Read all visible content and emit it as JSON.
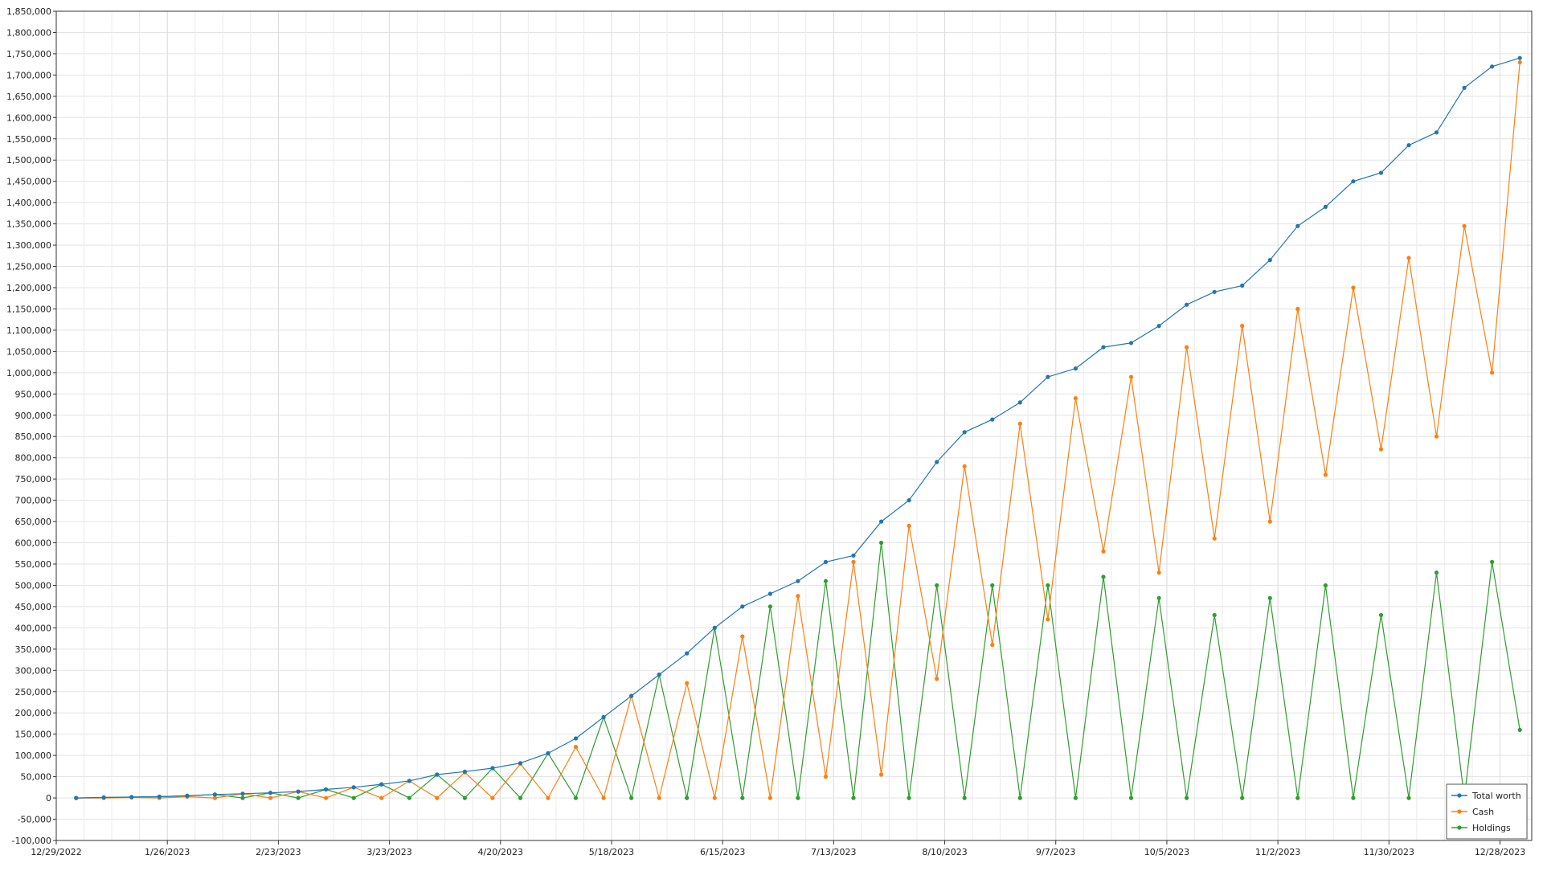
{
  "chart_data": {
    "type": "line",
    "title": "",
    "xlabel": "",
    "ylabel": "",
    "x_range": [
      "2022-12-29",
      "2024-01-05"
    ],
    "ylim": [
      -100000,
      1850000
    ],
    "grid": true,
    "legend_position": "bottom-right",
    "x_tick_labels": [
      "12/29/2022",
      "1/26/2023",
      "2/23/2023",
      "3/23/2023",
      "4/20/2023",
      "5/18/2023",
      "6/15/2023",
      "7/13/2023",
      "8/10/2023",
      "9/7/2023",
      "10/5/2023",
      "11/2/2023",
      "11/30/2023",
      "12/28/2023"
    ],
    "y_tick_labels": [
      "-100,000",
      "-50,000",
      "0",
      "50,000",
      "100,000",
      "150,000",
      "200,000",
      "250,000",
      "300,000",
      "350,000",
      "400,000",
      "450,000",
      "500,000",
      "550,000",
      "600,000",
      "650,000",
      "700,000",
      "750,000",
      "800,000",
      "850,000",
      "900,000",
      "950,000",
      "1,000,000",
      "1,050,000",
      "1,100,000",
      "1,150,000",
      "1,200,000",
      "1,250,000",
      "1,300,000",
      "1,350,000",
      "1,400,000",
      "1,450,000",
      "1,500,000",
      "1,550,000",
      "1,600,000",
      "1,650,000",
      "1,700,000",
      "1,750,000",
      "1,800,000",
      "1,850,000"
    ],
    "series": [
      {
        "name": "Total worth",
        "color": "#1f77b4",
        "points": [
          [
            "2023-01-03",
            0
          ],
          [
            "2023-01-10",
            1000
          ],
          [
            "2023-01-17",
            2000
          ],
          [
            "2023-01-24",
            3000
          ],
          [
            "2023-01-31",
            5000
          ],
          [
            "2023-02-07",
            8000
          ],
          [
            "2023-02-14",
            10000
          ],
          [
            "2023-02-21",
            12000
          ],
          [
            "2023-02-28",
            15000
          ],
          [
            "2023-03-07",
            20000
          ],
          [
            "2023-03-14",
            25000
          ],
          [
            "2023-03-21",
            32000
          ],
          [
            "2023-03-28",
            40000
          ],
          [
            "2023-04-04",
            55000
          ],
          [
            "2023-04-11",
            62000
          ],
          [
            "2023-04-18",
            70000
          ],
          [
            "2023-04-25",
            82000
          ],
          [
            "2023-05-02",
            105000
          ],
          [
            "2023-05-09",
            140000
          ],
          [
            "2023-05-16",
            190000
          ],
          [
            "2023-05-23",
            240000
          ],
          [
            "2023-05-30",
            290000
          ],
          [
            "2023-06-06",
            340000
          ],
          [
            "2023-06-13",
            400000
          ],
          [
            "2023-06-20",
            450000
          ],
          [
            "2023-06-27",
            480000
          ],
          [
            "2023-07-04",
            510000
          ],
          [
            "2023-07-11",
            555000
          ],
          [
            "2023-07-18",
            570000
          ],
          [
            "2023-07-25",
            650000
          ],
          [
            "2023-08-01",
            700000
          ],
          [
            "2023-08-08",
            790000
          ],
          [
            "2023-08-15",
            860000
          ],
          [
            "2023-08-22",
            890000
          ],
          [
            "2023-08-29",
            930000
          ],
          [
            "2023-09-05",
            990000
          ],
          [
            "2023-09-12",
            1010000
          ],
          [
            "2023-09-19",
            1060000
          ],
          [
            "2023-09-26",
            1070000
          ],
          [
            "2023-10-03",
            1110000
          ],
          [
            "2023-10-10",
            1160000
          ],
          [
            "2023-10-17",
            1190000
          ],
          [
            "2023-10-24",
            1205000
          ],
          [
            "2023-10-31",
            1265000
          ],
          [
            "2023-11-07",
            1345000
          ],
          [
            "2023-11-14",
            1390000
          ],
          [
            "2023-11-21",
            1450000
          ],
          [
            "2023-11-28",
            1470000
          ],
          [
            "2023-12-05",
            1535000
          ],
          [
            "2023-12-12",
            1565000
          ],
          [
            "2023-12-19",
            1670000
          ],
          [
            "2023-12-26",
            1720000
          ],
          [
            "2024-01-02",
            1740000
          ]
        ]
      },
      {
        "name": "Cash",
        "color": "#ff7f0e",
        "points": [
          [
            "2023-01-03",
            0
          ],
          [
            "2023-01-10",
            0
          ],
          [
            "2023-01-17",
            1000
          ],
          [
            "2023-01-24",
            0
          ],
          [
            "2023-01-31",
            3000
          ],
          [
            "2023-02-07",
            0
          ],
          [
            "2023-02-14",
            10000
          ],
          [
            "2023-02-21",
            0
          ],
          [
            "2023-02-28",
            15000
          ],
          [
            "2023-03-07",
            0
          ],
          [
            "2023-03-14",
            25000
          ],
          [
            "2023-03-21",
            0
          ],
          [
            "2023-03-28",
            40000
          ],
          [
            "2023-04-04",
            0
          ],
          [
            "2023-04-11",
            60000
          ],
          [
            "2023-04-18",
            0
          ],
          [
            "2023-04-25",
            80000
          ],
          [
            "2023-05-02",
            0
          ],
          [
            "2023-05-09",
            120000
          ],
          [
            "2023-05-16",
            0
          ],
          [
            "2023-05-23",
            240000
          ],
          [
            "2023-05-30",
            0
          ],
          [
            "2023-06-06",
            270000
          ],
          [
            "2023-06-13",
            0
          ],
          [
            "2023-06-20",
            380000
          ],
          [
            "2023-06-27",
            0
          ],
          [
            "2023-07-04",
            475000
          ],
          [
            "2023-07-11",
            50000
          ],
          [
            "2023-07-18",
            555000
          ],
          [
            "2023-07-25",
            55000
          ],
          [
            "2023-08-01",
            640000
          ],
          [
            "2023-08-08",
            280000
          ],
          [
            "2023-08-15",
            780000
          ],
          [
            "2023-08-22",
            360000
          ],
          [
            "2023-08-29",
            880000
          ],
          [
            "2023-09-05",
            420000
          ],
          [
            "2023-09-12",
            940000
          ],
          [
            "2023-09-19",
            580000
          ],
          [
            "2023-09-26",
            990000
          ],
          [
            "2023-10-03",
            530000
          ],
          [
            "2023-10-10",
            1060000
          ],
          [
            "2023-10-17",
            610000
          ],
          [
            "2023-10-24",
            1110000
          ],
          [
            "2023-10-31",
            650000
          ],
          [
            "2023-11-07",
            1150000
          ],
          [
            "2023-11-14",
            760000
          ],
          [
            "2023-11-21",
            1200000
          ],
          [
            "2023-11-28",
            820000
          ],
          [
            "2023-12-05",
            1270000
          ],
          [
            "2023-12-12",
            850000
          ],
          [
            "2023-12-19",
            1345000
          ],
          [
            "2023-12-26",
            1000000
          ],
          [
            "2024-01-02",
            1730000
          ]
        ]
      },
      {
        "name": "Holdings",
        "color": "#2ca02c",
        "points": [
          [
            "2023-01-03",
            0
          ],
          [
            "2023-01-10",
            1000
          ],
          [
            "2023-01-17",
            2000
          ],
          [
            "2023-01-24",
            3000
          ],
          [
            "2023-01-31",
            5000
          ],
          [
            "2023-02-07",
            8000
          ],
          [
            "2023-02-14",
            0
          ],
          [
            "2023-02-21",
            12000
          ],
          [
            "2023-02-28",
            0
          ],
          [
            "2023-03-07",
            20000
          ],
          [
            "2023-03-14",
            0
          ],
          [
            "2023-03-21",
            32000
          ],
          [
            "2023-03-28",
            0
          ],
          [
            "2023-04-04",
            55000
          ],
          [
            "2023-04-11",
            0
          ],
          [
            "2023-04-18",
            70000
          ],
          [
            "2023-04-25",
            0
          ],
          [
            "2023-05-02",
            105000
          ],
          [
            "2023-05-09",
            0
          ],
          [
            "2023-05-16",
            190000
          ],
          [
            "2023-05-23",
            0
          ],
          [
            "2023-05-30",
            290000
          ],
          [
            "2023-06-06",
            0
          ],
          [
            "2023-06-13",
            400000
          ],
          [
            "2023-06-20",
            0
          ],
          [
            "2023-06-27",
            450000
          ],
          [
            "2023-07-04",
            0
          ],
          [
            "2023-07-11",
            510000
          ],
          [
            "2023-07-18",
            0
          ],
          [
            "2023-07-25",
            600000
          ],
          [
            "2023-08-01",
            0
          ],
          [
            "2023-08-08",
            500000
          ],
          [
            "2023-08-15",
            0
          ],
          [
            "2023-08-22",
            500000
          ],
          [
            "2023-08-29",
            0
          ],
          [
            "2023-09-05",
            500000
          ],
          [
            "2023-09-12",
            0
          ],
          [
            "2023-09-19",
            520000
          ],
          [
            "2023-09-26",
            0
          ],
          [
            "2023-10-03",
            470000
          ],
          [
            "2023-10-10",
            0
          ],
          [
            "2023-10-17",
            430000
          ],
          [
            "2023-10-24",
            0
          ],
          [
            "2023-10-31",
            470000
          ],
          [
            "2023-11-07",
            0
          ],
          [
            "2023-11-14",
            500000
          ],
          [
            "2023-11-21",
            0
          ],
          [
            "2023-11-28",
            430000
          ],
          [
            "2023-12-05",
            0
          ],
          [
            "2023-12-12",
            530000
          ],
          [
            "2023-12-19",
            0
          ],
          [
            "2023-12-26",
            555000
          ],
          [
            "2024-01-02",
            160000
          ]
        ]
      }
    ]
  }
}
